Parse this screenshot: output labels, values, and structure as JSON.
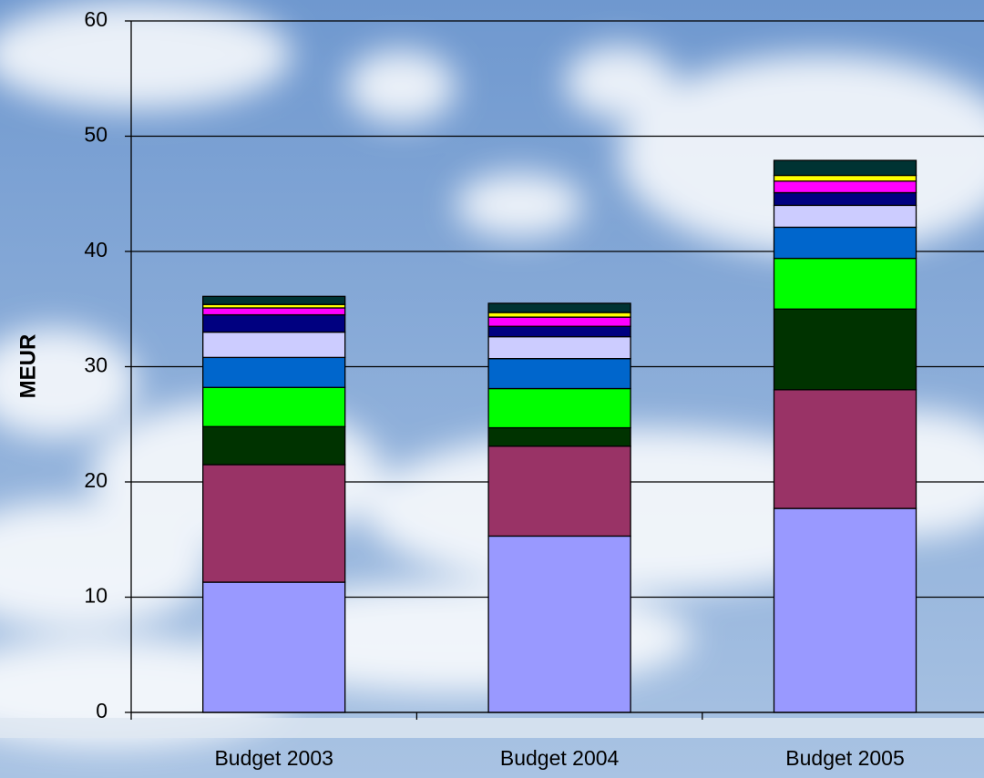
{
  "chart_data": {
    "type": "stacked-bar",
    "y_label": "MEUR",
    "categories": [
      "Budget 2003",
      "Budget 2004",
      "Budget 2005"
    ],
    "series": [
      {
        "color": "#9999ff",
        "values": [
          11.3,
          15.3,
          17.7
        ]
      },
      {
        "color": "#993366",
        "values": [
          10.2,
          7.8,
          10.3
        ]
      },
      {
        "color": "#003300",
        "values": [
          3.3,
          1.6,
          7.0
        ]
      },
      {
        "color": "#00ff00",
        "values": [
          3.4,
          3.4,
          4.4
        ]
      },
      {
        "color": "#0066cc",
        "values": [
          2.6,
          2.6,
          2.7
        ]
      },
      {
        "color": "#ccccff",
        "values": [
          2.2,
          1.9,
          1.9
        ]
      },
      {
        "color": "#000080",
        "values": [
          1.5,
          0.9,
          1.1
        ]
      },
      {
        "color": "#ff00ff",
        "values": [
          0.6,
          0.8,
          1.0
        ]
      },
      {
        "color": "#ffff00",
        "values": [
          0.3,
          0.4,
          0.5
        ]
      },
      {
        "color": "#003333",
        "values": [
          0.7,
          0.8,
          1.3
        ]
      }
    ],
    "ylim": [
      0,
      60
    ],
    "yticks": [
      0,
      10,
      20,
      30,
      40,
      50,
      60
    ],
    "grid": true
  }
}
